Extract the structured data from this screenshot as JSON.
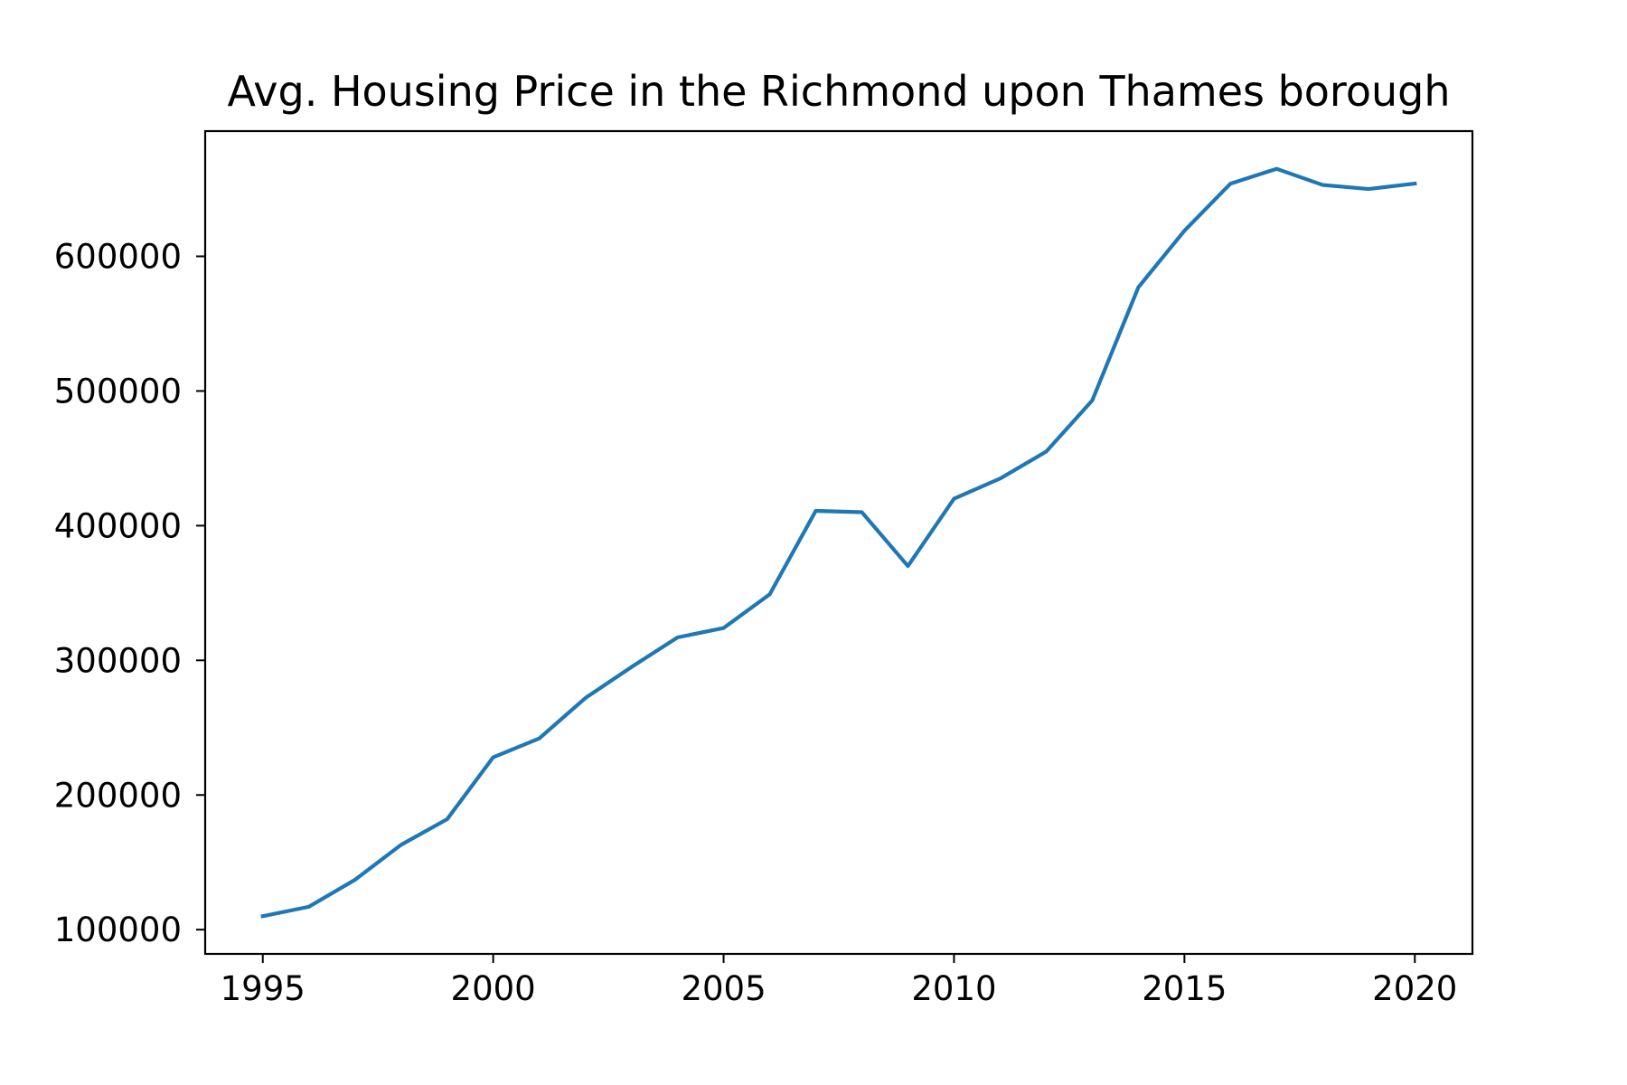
{
  "chart_data": {
    "type": "line",
    "title": "Avg. Housing Price in the Richmond upon Thames borough",
    "xlabel": "",
    "ylabel": "",
    "xlim": [
      1993.75,
      2021.25
    ],
    "ylim": [
      82000,
      693000
    ],
    "x_ticks": [
      1995,
      2000,
      2005,
      2010,
      2015,
      2020
    ],
    "x_tick_labels": [
      "1995",
      "2000",
      "2005",
      "2010",
      "2015",
      "2020"
    ],
    "y_ticks": [
      100000,
      200000,
      300000,
      400000,
      500000,
      600000
    ],
    "y_tick_labels": [
      "100000",
      "200000",
      "300000",
      "400000",
      "500000",
      "600000"
    ],
    "grid": false,
    "legend": "none",
    "series": [
      {
        "color": "#1f77b4",
        "x": [
          1995,
          1996,
          1997,
          1998,
          1999,
          2000,
          2001,
          2002,
          2003,
          2004,
          2005,
          2006,
          2007,
          2008,
          2009,
          2010,
          2011,
          2012,
          2013,
          2014,
          2015,
          2016,
          2017,
          2018,
          2019,
          2020
        ],
        "y": [
          110000,
          117000,
          137000,
          163000,
          182000,
          228000,
          242000,
          272000,
          295000,
          317000,
          324000,
          349000,
          411000,
          410000,
          370000,
          420000,
          435000,
          455000,
          493000,
          577000,
          619000,
          654000,
          665000,
          653000,
          650000,
          654000
        ]
      }
    ]
  }
}
